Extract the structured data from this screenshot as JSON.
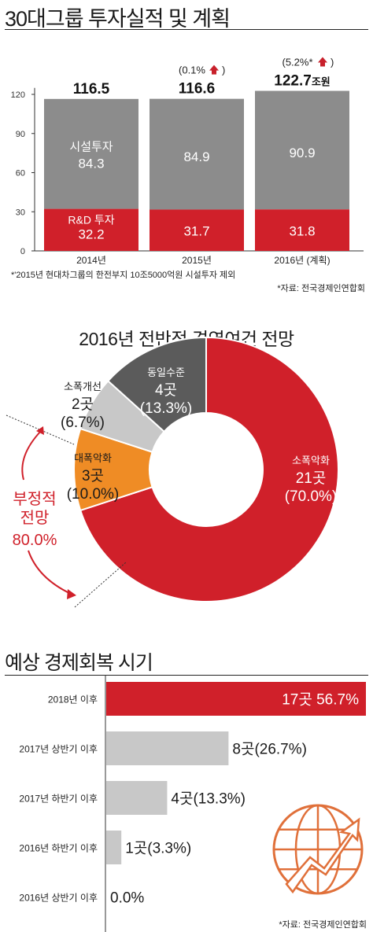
{
  "colors": {
    "red": "#d0202a",
    "gray": "#8c8c8c",
    "light_gray": "#c8c8c8",
    "orange": "#ef8c25",
    "dark_gray": "#5b5b5b",
    "growth_red": "#c8202b",
    "text": "#1a1a1a"
  },
  "investment": {
    "title": "30대그룹 투자실적 및 계획",
    "footnote": "*'2015년 현대차그룹의 한전부지 10조5000억원 시설투자 제외",
    "source": "*자료: 전국경제인연합회",
    "total_unit": "조원",
    "rd_label": "R&D 투자",
    "facility_label": "시설투자"
  },
  "outlook": {
    "title": "2016년 전반적 경영여건 전망",
    "negative_label_1": "부정적",
    "negative_label_2": "전망",
    "negative_pct": "80.0%"
  },
  "recovery": {
    "title": "예상 경제회복 시기",
    "source": "*자료: 전국경제인연합회"
  },
  "chart_data": [
    {
      "type": "bar",
      "stacked": true,
      "categories": [
        "2014년",
        "2015년",
        "2016년 (계획)"
      ],
      "series": [
        {
          "name": "R&D 투자",
          "values": [
            32.2,
            31.7,
            31.8
          ]
        },
        {
          "name": "시설투자",
          "values": [
            84.3,
            84.9,
            90.9
          ]
        }
      ],
      "totals": [
        "116.5",
        "116.6",
        "122.7"
      ],
      "growth": [
        "",
        "(0.1%",
        "(5.2%*"
      ],
      "bar_value_labels": {
        "rd": [
          "32.2",
          "31.7",
          "31.8"
        ],
        "facility": [
          "84.3",
          "84.9",
          "90.9"
        ]
      },
      "yticks": [
        "0",
        "30",
        "60",
        "90",
        "120"
      ],
      "ylim": [
        0,
        125
      ],
      "grid": false
    },
    {
      "type": "pie",
      "donut": true,
      "slices": [
        {
          "name": "소폭악화",
          "count": "21곳",
          "pct": "(70.0%)",
          "value": 70.0
        },
        {
          "name": "대폭악화",
          "count": "3곳",
          "pct": "(10.0%)",
          "value": 10.0
        },
        {
          "name": "소폭개선",
          "count": "2곳",
          "pct": "(6.7%)",
          "value": 6.7
        },
        {
          "name": "동일수준",
          "count": "4곳",
          "pct": "(13.3%)",
          "value": 13.3
        }
      ]
    },
    {
      "type": "bar",
      "orientation": "horizontal",
      "categories": [
        "2018년 이후",
        "2017년 상반기 이후",
        "2017년 하반기 이후",
        "2016년 하반기 이후",
        "2016년 상반기 이후"
      ],
      "values": [
        56.7,
        26.7,
        13.3,
        3.3,
        0.0
      ],
      "labels": [
        "17곳 56.7%",
        "8곳(26.7%)",
        "4곳(13.3%)",
        "1곳(3.3%)",
        "0.0%"
      ],
      "xlim": [
        0,
        56.7
      ]
    }
  ]
}
